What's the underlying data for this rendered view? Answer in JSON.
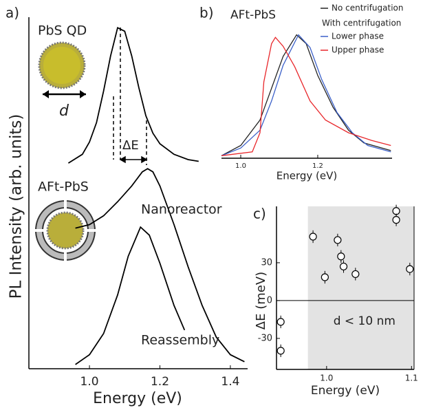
{
  "chart_data": [
    {
      "type": "line",
      "panel_label": "a)",
      "xlabel": "Energy (eV)",
      "ylabel": "PL Intensity (arb. units)",
      "annotations": [
        "AFt-PbS",
        "d",
        "ΔE"
      ],
      "xlim": [
        0.828,
        1.449
      ],
      "ylim": [
        0,
        10
      ],
      "xticks": [
        {
          "value": 1.0,
          "label": "1.0"
        },
        {
          "value": 1.2,
          "label": "1.2"
        },
        {
          "value": 1.4,
          "label": "1.4"
        }
      ],
      "series": [
        {
          "name": "PbS QD",
          "color": "#000000",
          "x": [
            0.94,
            0.98,
            1.0,
            1.02,
            1.04,
            1.06,
            1.08,
            1.1,
            1.12,
            1.14,
            1.16,
            1.18,
            1.2,
            1.24,
            1.28,
            1.31
          ],
          "values": [
            5.85,
            6.1,
            6.45,
            7.0,
            7.9,
            8.9,
            9.7,
            9.6,
            8.9,
            8.0,
            7.2,
            6.7,
            6.4,
            6.1,
            5.95,
            5.9
          ]
        },
        {
          "name": "Nanoreactor",
          "color": "#000000",
          "x": [
            0.96,
            1.0,
            1.04,
            1.08,
            1.12,
            1.15,
            1.165,
            1.18,
            1.2,
            1.24,
            1.28,
            1.32,
            1.36,
            1.4,
            1.44
          ],
          "values": [
            4.0,
            4.1,
            4.35,
            4.75,
            5.2,
            5.6,
            5.69,
            5.6,
            5.2,
            4.1,
            2.9,
            1.8,
            0.9,
            0.4,
            0.2
          ]
        },
        {
          "name": "Reassembly",
          "color": "#000000",
          "x": [
            0.96,
            1.0,
            1.04,
            1.08,
            1.11,
            1.145,
            1.17,
            1.2,
            1.24,
            1.27
          ],
          "values": [
            0.12,
            0.4,
            1.0,
            2.1,
            3.2,
            4.03,
            3.8,
            3.0,
            1.8,
            1.1
          ]
        }
      ]
    },
    {
      "type": "line",
      "panel_label": "b)",
      "title": "AFt-PbS",
      "xlabel": "Energy (eV)",
      "legend_group_title": "With centrifugation",
      "xlim": [
        0.95,
        1.393
      ],
      "ylim": [
        0,
        1
      ],
      "xticks": [
        {
          "value": 1.0,
          "label": "1.0"
        },
        {
          "value": 1.2,
          "label": "1.2"
        }
      ],
      "series": [
        {
          "name": "No centrifugation",
          "color": "#222222",
          "x": [
            0.95,
            1.0,
            1.05,
            1.08,
            1.11,
            1.145,
            1.17,
            1.2,
            1.24,
            1.28,
            1.32,
            1.39
          ],
          "values": [
            0.02,
            0.1,
            0.3,
            0.55,
            0.8,
            0.97,
            0.9,
            0.65,
            0.4,
            0.22,
            0.12,
            0.06
          ]
        },
        {
          "name": "Lower phase",
          "color": "#3a5fc8",
          "x": [
            0.95,
            1.0,
            1.05,
            1.08,
            1.11,
            1.15,
            1.18,
            1.21,
            1.25,
            1.29,
            1.33,
            1.39
          ],
          "values": [
            0.02,
            0.08,
            0.22,
            0.45,
            0.73,
            0.97,
            0.87,
            0.62,
            0.36,
            0.2,
            0.1,
            0.05
          ]
        },
        {
          "name": "Upper phase",
          "color": "#e8262a",
          "x": [
            0.95,
            1.03,
            1.05,
            1.06,
            1.08,
            1.09,
            1.11,
            1.14,
            1.18,
            1.22,
            1.28,
            1.34,
            1.39
          ],
          "values": [
            0.02,
            0.05,
            0.2,
            0.6,
            0.9,
            0.95,
            0.88,
            0.72,
            0.45,
            0.3,
            0.2,
            0.14,
            0.1
          ]
        }
      ]
    },
    {
      "type": "scatter",
      "panel_label": "c)",
      "xlabel": "Energy (eV)",
      "ylabel": "ΔE (meV)",
      "xlim": [
        0.941,
        1.103
      ],
      "ylim": [
        -54.6,
        74.7
      ],
      "xticks": [
        {
          "value": 1.0,
          "label": "1.0"
        },
        {
          "value": 1.1,
          "label": "1.1"
        }
      ],
      "yticks": [
        -30,
        0,
        30
      ],
      "shaded_region": {
        "xlim": [
          0.978,
          1.103
        ],
        "label": "d < 10 nm"
      },
      "x": [
        0.946,
        0.946,
        0.984,
        0.998,
        1.013,
        1.017,
        1.02,
        1.034,
        1.082,
        1.082,
        1.098
      ],
      "values": [
        -16.9,
        -39.8,
        50.7,
        18.5,
        48,
        35,
        27,
        21,
        71,
        64,
        25
      ],
      "errors": [
        5,
        5,
        5,
        5,
        5,
        5,
        5,
        5,
        5,
        5,
        5
      ]
    }
  ]
}
